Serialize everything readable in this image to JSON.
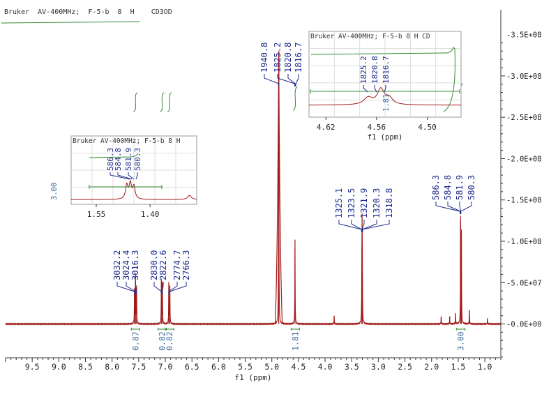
{
  "header": {
    "title": "Bruker  AV-400MHz;  F-5-b  8  H    CD3OD"
  },
  "chart_data": {
    "type": "line",
    "title": "Bruker  AV-400MHz;  F-5-b  8  H    CD3OD",
    "xlabel": "f1 (ppm)",
    "x_reversed": true,
    "xlim": [
      10.0,
      0.7
    ],
    "x_ticks": [
      "9.5",
      "9.0",
      "8.5",
      "8.0",
      "7.5",
      "7.0",
      "6.5",
      "6.0",
      "5.5",
      "5.0",
      "4.5",
      "4.0",
      "3.5",
      "3.0",
      "2.5",
      "2.0",
      "1.5",
      "1.0"
    ],
    "ylim": [
      -40000000.0,
      380000000.0
    ],
    "y_ticks": [
      "-0.0E+00",
      "-5.0E+07",
      "-1.0E+08",
      "-1.5E+08",
      "-2.0E+08",
      "-2.5E+08",
      "-3.0E+08",
      "-3.5E+08"
    ],
    "y_tick_values": [
      0,
      50000000.0,
      100000000.0,
      150000000.0,
      200000000.0,
      250000000.0,
      300000000.0,
      350000000.0
    ],
    "peaks": [
      {
        "ppm": 7.58,
        "height": 42000000.0
      },
      {
        "ppm": 7.56,
        "height": 58000000.0
      },
      {
        "ppm": 7.54,
        "height": 45000000.0
      },
      {
        "ppm": 7.075,
        "height": 53000000.0
      },
      {
        "ppm": 7.055,
        "height": 50000000.0
      },
      {
        "ppm": 6.935,
        "height": 50000000.0
      },
      {
        "ppm": 6.915,
        "height": 46000000.0
      },
      {
        "ppm": 4.87,
        "height": 330000000.0
      },
      {
        "ppm": 4.565,
        "height": 102000000.0
      },
      {
        "ppm": 3.83,
        "height": 10000000.0
      },
      {
        "ppm": 3.31,
        "height": 60000000.0
      },
      {
        "ppm": 3.305,
        "height": 100000000.0
      },
      {
        "ppm": 3.3,
        "height": 60000000.0
      },
      {
        "ppm": 1.82,
        "height": 9000000.0
      },
      {
        "ppm": 1.66,
        "height": 9000000.0
      },
      {
        "ppm": 1.55,
        "height": 13000000.0
      },
      {
        "ppm": 1.455,
        "height": 125000000.0
      },
      {
        "ppm": 1.44,
        "height": 110000000.0
      },
      {
        "ppm": 1.29,
        "height": 17000000.0
      },
      {
        "ppm": 0.95,
        "height": 7000000.0
      }
    ],
    "peak_label_groups": [
      {
        "labels": [
          "3032.2",
          "3024.4",
          "3016.3"
        ],
        "ppm": [
          7.58,
          7.56,
          7.54
        ]
      },
      {
        "labels": [
          "2830.0",
          "2822.6"
        ],
        "ppm": [
          7.075,
          7.055
        ]
      },
      {
        "labels": [
          "2774.7",
          "2766.3"
        ],
        "ppm": [
          6.935,
          6.915
        ]
      },
      {
        "labels": [
          "1940.8",
          "1825.2",
          "1820.8",
          "1816.7"
        ],
        "ppm": [
          4.87,
          4.57,
          4.56,
          4.55
        ]
      },
      {
        "labels": [
          "1325.1",
          "1323.5",
          "1321.9",
          "1320.3",
          "1318.8"
        ],
        "ppm": [
          3.315,
          3.31,
          3.305,
          3.3,
          3.295
        ]
      },
      {
        "labels": [
          "586.3",
          "584.8",
          "581.9",
          "580.3"
        ],
        "ppm": [
          1.465,
          1.46,
          1.455,
          1.45
        ]
      }
    ],
    "integrals": [
      {
        "ppm": 7.56,
        "value": "0.87"
      },
      {
        "ppm": 7.06,
        "value": "0.82"
      },
      {
        "ppm": 6.92,
        "value": "0.82"
      },
      {
        "ppm": 4.56,
        "value": "1.81"
      },
      {
        "ppm": 1.45,
        "value": "3.00"
      }
    ],
    "insets": [
      {
        "title": "Bruker  AV-400MHz;  F-5-b  8  H",
        "xlabel": "",
        "xlim": [
          1.62,
          1.27
        ],
        "x_ticks": [
          "1.55",
          "1.40"
        ],
        "peak_labels": [
          "586.3",
          "584.8",
          "581.9",
          "580.3"
        ],
        "integral": "3.00"
      },
      {
        "title": "Bruker  AV-400MHz;  F-5-b  8  H    CD",
        "xlabel": "f1 (ppm)",
        "xlim": [
          4.64,
          4.46
        ],
        "x_ticks": [
          "4.62",
          "4.56",
          "4.50"
        ],
        "peak_labels": [
          "1825.2",
          "1820.8",
          "1816.7"
        ],
        "integral": "1.81"
      }
    ]
  },
  "colors": {
    "spectrum": "#a01818",
    "peak_label": "#1b2a8c",
    "integral": "#2e8b2e",
    "axis": "#333333"
  }
}
